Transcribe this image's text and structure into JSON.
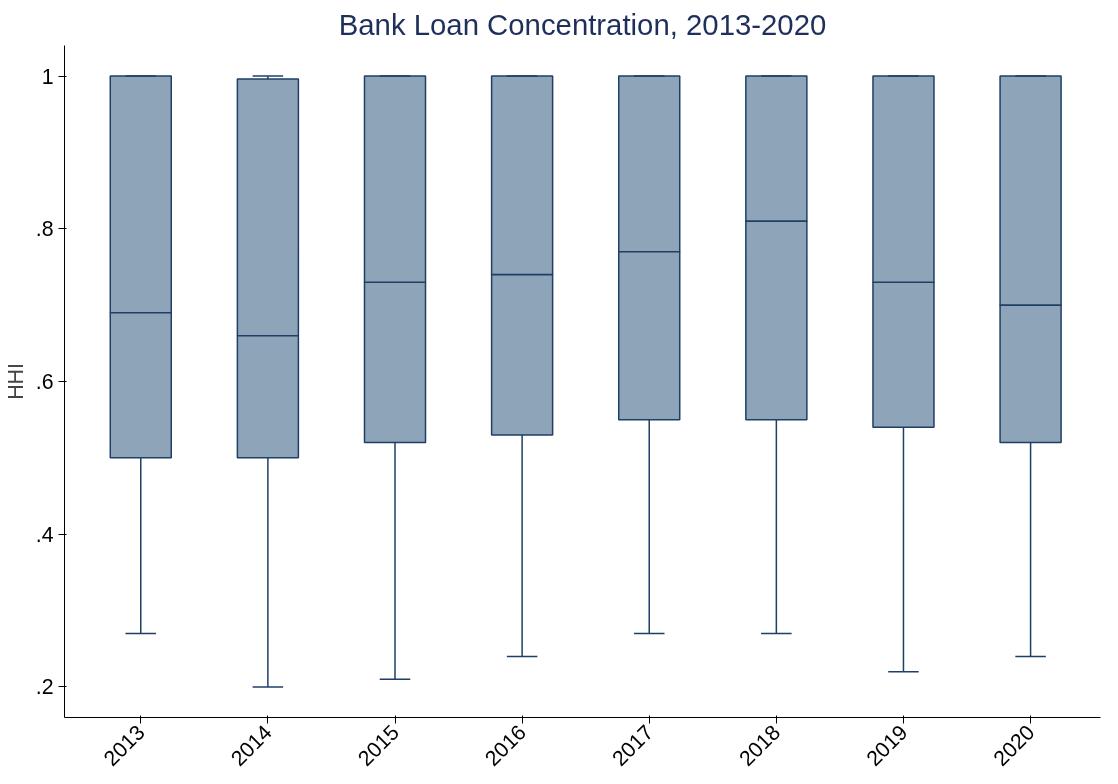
{
  "chart_data": {
    "type": "box",
    "title": "Bank Loan Concentration, 2013-2020",
    "ylabel": "HHI",
    "categories": [
      "2013",
      "2014",
      "2015",
      "2016",
      "2017",
      "2018",
      "2019",
      "2020"
    ],
    "boxes": [
      {
        "low": 0.27,
        "q1": 0.5,
        "median": 0.69,
        "q3": 1.0,
        "high": 1.0
      },
      {
        "low": 0.2,
        "q1": 0.5,
        "median": 0.66,
        "q3": 0.996,
        "high": 1.0
      },
      {
        "low": 0.21,
        "q1": 0.52,
        "median": 0.73,
        "q3": 1.0,
        "high": 1.0
      },
      {
        "low": 0.24,
        "q1": 0.53,
        "median": 0.74,
        "q3": 1.0,
        "high": 1.0
      },
      {
        "low": 0.27,
        "q1": 0.55,
        "median": 0.77,
        "q3": 1.0,
        "high": 1.0
      },
      {
        "low": 0.27,
        "q1": 0.55,
        "median": 0.81,
        "q3": 1.0,
        "high": 1.0
      },
      {
        "low": 0.22,
        "q1": 0.54,
        "median": 0.73,
        "q3": 1.0,
        "high": 1.0
      },
      {
        "low": 0.24,
        "q1": 0.52,
        "median": 0.7,
        "q3": 1.0,
        "high": 1.0
      }
    ],
    "color": "#8ea4b9",
    "ylim": [
      0.16,
      1.04
    ],
    "yticks": [
      {
        "value": 0.2,
        "label": ".2"
      },
      {
        "value": 0.4,
        "label": ".4"
      },
      {
        "value": 0.6,
        "label": ".6"
      },
      {
        "value": 0.8,
        "label": ".8"
      },
      {
        "value": 1,
        "label": "1"
      }
    ],
    "grid": false
  }
}
